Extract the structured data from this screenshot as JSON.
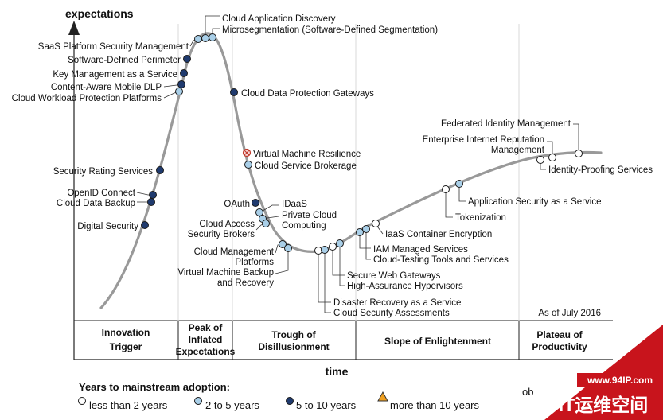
{
  "chart_data": {
    "type": "line",
    "ylabel": "expectations",
    "xlabel": "time",
    "as_of": "As of July 2016",
    "phases": [
      "Innovation Trigger",
      "Peak of Inflated Expectations",
      "Trough of Disillusionment",
      "Slope of Enlightenment",
      "Plateau of Productivity"
    ],
    "legend": {
      "title": "Years to mainstream adoption:",
      "items": [
        {
          "label": "less than 2 years",
          "color": "#ffffff",
          "marker": "circle"
        },
        {
          "label": "2 to 5 years",
          "color": "#a9cfe8",
          "marker": "circle"
        },
        {
          "label": "5 to 10 years",
          "color": "#1f3a6e",
          "marker": "circle"
        },
        {
          "label": "more than 10 years",
          "color": "#f0a020",
          "marker": "triangle"
        }
      ],
      "trailing_text": "ob"
    },
    "watermark": {
      "url": "www.94IP.com",
      "brand": "IT运维空间"
    },
    "points": [
      {
        "name": "Digital Security",
        "category": "5 to 10 years"
      },
      {
        "name": "Cloud Data Backup",
        "category": "5 to 10 years"
      },
      {
        "name": "OpenID Connect",
        "category": "5 to 10 years"
      },
      {
        "name": "Security Rating Services",
        "category": "5 to 10 years"
      },
      {
        "name": "Cloud Workload Protection Platforms",
        "category": "2 to 5 years"
      },
      {
        "name": "Content-Aware Mobile DLP",
        "category": "5 to 10 years"
      },
      {
        "name": "Key Management as a Service",
        "category": "5 to 10 years"
      },
      {
        "name": "Software-Defined Perimeter",
        "category": "5 to 10 years"
      },
      {
        "name": "SaaS Platform Security Management",
        "category": "2 to 5 years"
      },
      {
        "name": "Cloud Application Discovery",
        "category": "2 to 5 years"
      },
      {
        "name": "Microsegmentation (Software-Defined Segmentation)",
        "category": "2 to 5 years"
      },
      {
        "name": "Cloud Data Protection Gateways",
        "category": "5 to 10 years"
      },
      {
        "name": "Virtual Machine Resilience",
        "category": "obsolete before plateau"
      },
      {
        "name": "Cloud Service Brokerage",
        "category": "2 to 5 years"
      },
      {
        "name": "OAuth",
        "category": "5 to 10 years"
      },
      {
        "name": "IDaaS",
        "category": "2 to 5 years"
      },
      {
        "name": "Private Cloud Computing",
        "category": "2 to 5 years"
      },
      {
        "name": "Cloud Access Security Brokers",
        "category": "2 to 5 years"
      },
      {
        "name": "Cloud Management Platforms",
        "category": "2 to 5 years"
      },
      {
        "name": "Virtual Machine Backup and Recovery",
        "category": "2 to 5 years"
      },
      {
        "name": "Disaster Recovery as a Service",
        "category": "less than 2 years"
      },
      {
        "name": "Cloud Security Assessments",
        "category": "2 to 5 years"
      },
      {
        "name": "Secure Web Gateways",
        "category": "less than 2 years"
      },
      {
        "name": "High-Assurance Hypervisors",
        "category": "2 to 5 years"
      },
      {
        "name": "IAM Managed Services",
        "category": "2 to 5 years"
      },
      {
        "name": "Cloud-Testing Tools and Services",
        "category": "2 to 5 years"
      },
      {
        "name": "IaaS Container Encryption",
        "category": "less than 2 years"
      },
      {
        "name": "Tokenization",
        "category": "less than 2 years"
      },
      {
        "name": "Application Security as a Service",
        "category": "2 to 5 years"
      },
      {
        "name": "Identity-Proofing Services",
        "category": "less than 2 years"
      },
      {
        "name": "Enterprise Internet Reputation Management",
        "category": "less than 2 years"
      },
      {
        "name": "Federated Identity Management",
        "category": "less than 2 years"
      }
    ]
  }
}
